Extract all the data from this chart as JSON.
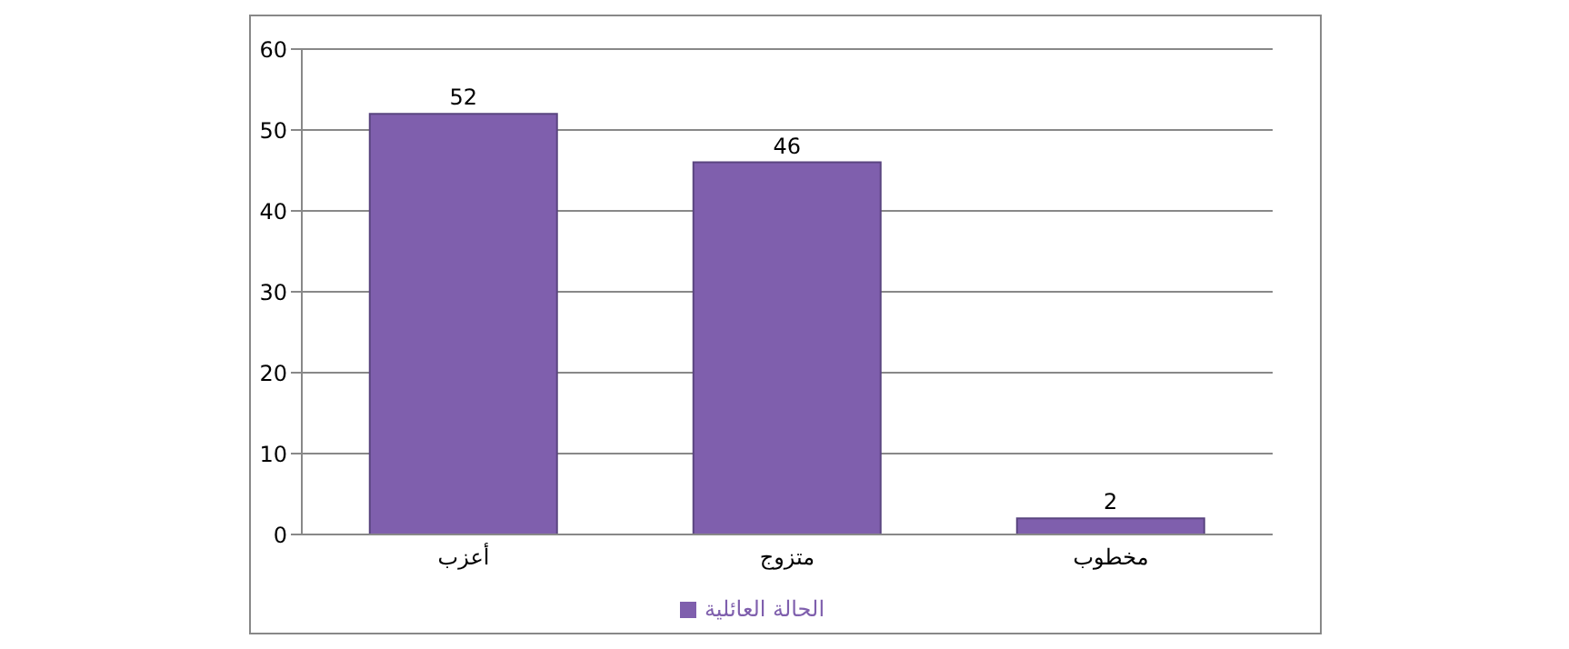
{
  "chart_data": {
    "type": "bar",
    "categories": [
      "أعزب",
      "متزوج",
      "مخطوب"
    ],
    "series": [
      {
        "name": "الحالة العائلية",
        "color": "#7f5fad",
        "values": [
          52,
          46,
          2
        ]
      }
    ],
    "ylim": [
      0,
      60
    ],
    "yticks": [
      0,
      10,
      20,
      30,
      40,
      50,
      60
    ],
    "grid": "y",
    "legend": "bottom",
    "data_labels": true
  }
}
